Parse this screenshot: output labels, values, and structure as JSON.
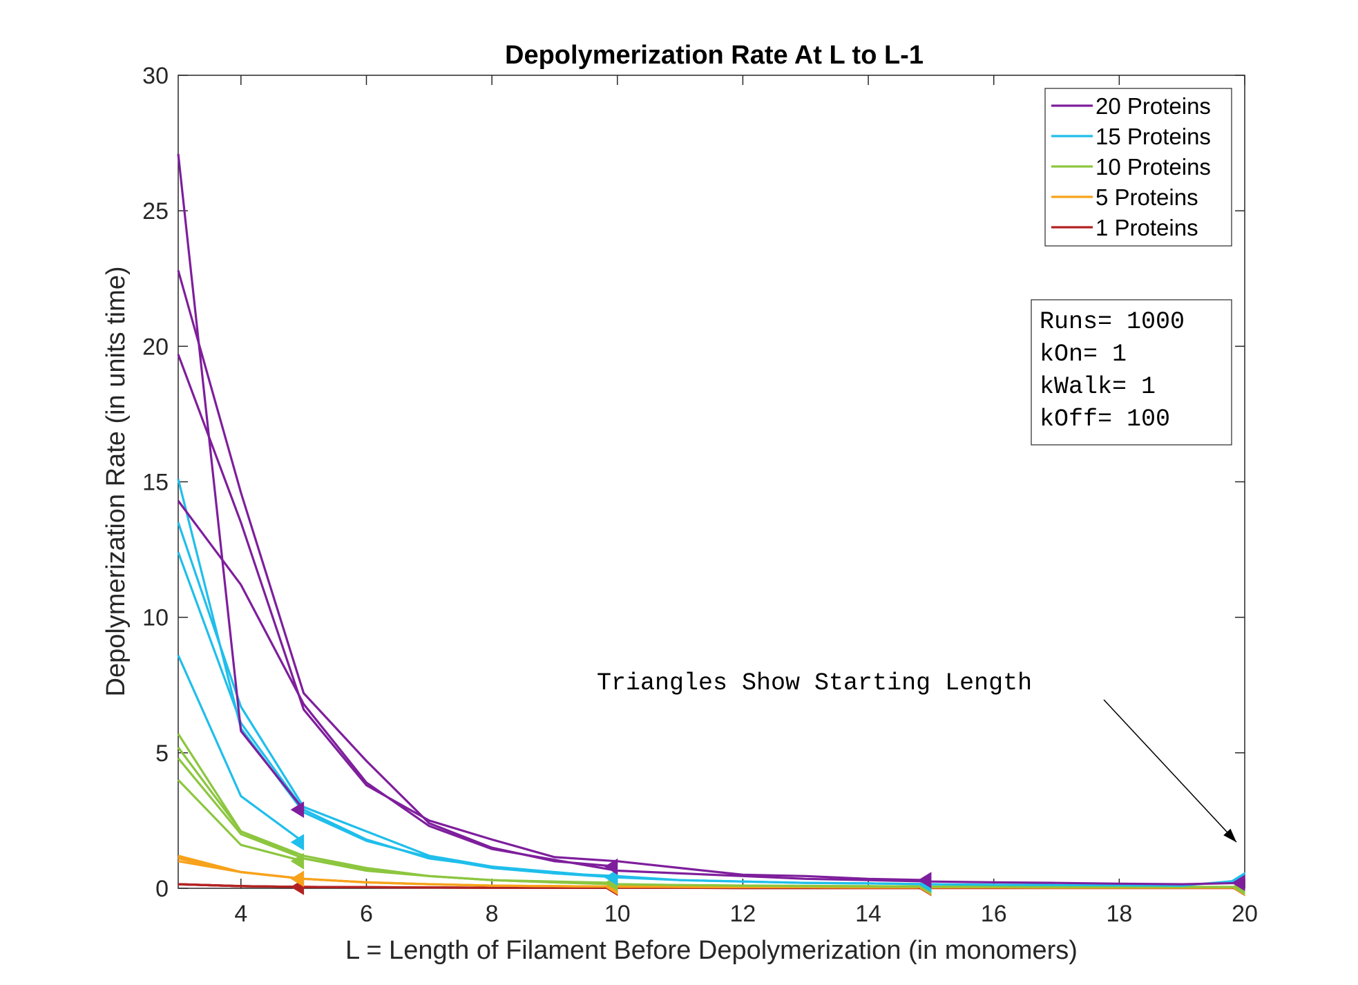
{
  "chart_data": {
    "type": "line",
    "title": "Depolymerization Rate At L to L-1",
    "xlabel": "L = Length of Filament Before Depolymerization (in monomers)",
    "ylabel": "Depolymerization Rate (in units time)",
    "xlim": [
      3,
      20
    ],
    "ylim": [
      0,
      30
    ],
    "xticks": [
      4,
      6,
      8,
      10,
      12,
      14,
      16,
      18,
      20
    ],
    "yticks": [
      0,
      5,
      10,
      15,
      20,
      25,
      30
    ],
    "grid": false,
    "legend_position": "top-right",
    "legend": [
      {
        "label": "20 Proteins",
        "color": "#7E1E9C"
      },
      {
        "label": "15 Proteins",
        "color": "#1FBEEB"
      },
      {
        "label": "10 Proteins",
        "color": "#8CC63F"
      },
      {
        "label": "5 Proteins",
        "color": "#F7A21B"
      },
      {
        "label": "1 Proteins",
        "color": "#B22222"
      }
    ],
    "params_box": [
      "Runs= 1000",
      "kOn= 1",
      "kWalk= 1",
      "kOff= 100"
    ],
    "annotation": {
      "text": "Triangles Show Starting Length",
      "points_to": [
        20,
        1.5
      ]
    },
    "series": [
      {
        "name": "20 Proteins",
        "color": "#7E1E9C",
        "start": 5,
        "x": [
          3,
          4,
          5
        ],
        "y": [
          27.1,
          5.8,
          2.9
        ]
      },
      {
        "name": "20 Proteins",
        "color": "#7E1E9C",
        "start": 10,
        "x": [
          3,
          4,
          5,
          6,
          7,
          8,
          9,
          10
        ],
        "y": [
          22.8,
          14.6,
          7.2,
          4.7,
          2.4,
          1.5,
          1.0,
          0.8
        ]
      },
      {
        "name": "20 Proteins",
        "color": "#7E1E9C",
        "start": 15,
        "x": [
          3,
          4,
          5,
          6,
          7,
          8,
          9,
          10,
          11,
          12,
          13,
          14,
          15
        ],
        "y": [
          19.7,
          13.5,
          6.6,
          3.8,
          2.5,
          1.8,
          1.15,
          1.0,
          0.75,
          0.5,
          0.45,
          0.35,
          0.3
        ]
      },
      {
        "name": "20 Proteins",
        "color": "#7E1E9C",
        "start": 20,
        "x": [
          3,
          4,
          5,
          6,
          7,
          8,
          9,
          10,
          11,
          12,
          13,
          14,
          15,
          16,
          17,
          18,
          19,
          20
        ],
        "y": [
          14.3,
          11.2,
          6.8,
          3.9,
          2.3,
          1.45,
          1.05,
          0.65,
          0.55,
          0.45,
          0.35,
          0.3,
          0.25,
          0.22,
          0.2,
          0.17,
          0.15,
          0.2
        ]
      },
      {
        "name": "15 Proteins",
        "color": "#1FBEEB",
        "start": 5,
        "x": [
          3,
          4,
          5
        ],
        "y": [
          8.6,
          3.4,
          1.7
        ]
      },
      {
        "name": "15 Proteins",
        "color": "#1FBEEB",
        "start": 10,
        "x": [
          3,
          4,
          5,
          6,
          7,
          8,
          9,
          10
        ],
        "y": [
          12.4,
          6.1,
          2.9,
          1.8,
          1.1,
          0.8,
          0.6,
          0.4
        ]
      },
      {
        "name": "15 Proteins",
        "color": "#1FBEEB",
        "start": 15,
        "x": [
          3,
          4,
          5,
          6,
          7,
          8,
          9,
          10,
          11,
          12,
          13,
          14,
          15
        ],
        "y": [
          13.5,
          6.7,
          3.0,
          2.1,
          1.2,
          0.8,
          0.55,
          0.4,
          0.3,
          0.25,
          0.2,
          0.18,
          0.15
        ]
      },
      {
        "name": "15 Proteins",
        "color": "#1FBEEB",
        "start": 20,
        "x": [
          3,
          4,
          5,
          6,
          7,
          8,
          9,
          10,
          11,
          12,
          13,
          14,
          15,
          16,
          17,
          18,
          19,
          20
        ],
        "y": [
          15.1,
          5.9,
          2.8,
          1.75,
          1.15,
          0.75,
          0.55,
          0.45,
          0.3,
          0.25,
          0.2,
          0.18,
          0.15,
          0.13,
          0.12,
          0.11,
          0.1,
          0.3
        ]
      },
      {
        "name": "10 Proteins",
        "color": "#8CC63F",
        "start": 5,
        "x": [
          3,
          4,
          5
        ],
        "y": [
          4.0,
          1.6,
          1.0
        ]
      },
      {
        "name": "10 Proteins",
        "color": "#8CC63F",
        "start": 10,
        "x": [
          3,
          4,
          5,
          6,
          7,
          8,
          9,
          10
        ],
        "y": [
          4.8,
          2.0,
          1.1,
          0.7,
          0.45,
          0.3,
          0.25,
          0.2
        ]
      },
      {
        "name": "10 Proteins",
        "color": "#8CC63F",
        "start": 15,
        "x": [
          3,
          4,
          5,
          6,
          7,
          8,
          9,
          10,
          11,
          12,
          13,
          14,
          15
        ],
        "y": [
          5.2,
          2.1,
          1.2,
          0.75,
          0.45,
          0.3,
          0.22,
          0.15,
          0.12,
          0.1,
          0.09,
          0.08,
          0.07
        ]
      },
      {
        "name": "10 Proteins",
        "color": "#8CC63F",
        "start": 20,
        "x": [
          3,
          4,
          5,
          6,
          7,
          8,
          9,
          10,
          11,
          12,
          13,
          14,
          15,
          16,
          17,
          18,
          19,
          20
        ],
        "y": [
          5.7,
          2.1,
          1.1,
          0.65,
          0.45,
          0.3,
          0.22,
          0.15,
          0.12,
          0.1,
          0.08,
          0.07,
          0.06,
          0.06,
          0.05,
          0.05,
          0.05,
          0.05
        ]
      },
      {
        "name": "5 Proteins",
        "color": "#F7A21B",
        "start": 5,
        "x": [
          3,
          4,
          5
        ],
        "y": [
          1.0,
          0.6,
          0.35
        ]
      },
      {
        "name": "5 Proteins",
        "color": "#F7A21B",
        "start": 10,
        "x": [
          3,
          4,
          5,
          6,
          7,
          8,
          9,
          10
        ],
        "y": [
          1.1,
          0.6,
          0.35,
          0.22,
          0.15,
          0.1,
          0.08,
          0.06
        ]
      },
      {
        "name": "5 Proteins",
        "color": "#F7A21B",
        "start": 15,
        "x": [
          3,
          4,
          5,
          6,
          7,
          8,
          9,
          10,
          11,
          12,
          13,
          14,
          15
        ],
        "y": [
          1.15,
          0.6,
          0.35,
          0.22,
          0.15,
          0.1,
          0.08,
          0.06,
          0.05,
          0.04,
          0.04,
          0.03,
          0.03
        ]
      },
      {
        "name": "5 Proteins",
        "color": "#F7A21B",
        "start": 20,
        "x": [
          3,
          4,
          5,
          6,
          7,
          8,
          9,
          10,
          11,
          12,
          13,
          14,
          15,
          16,
          17,
          18,
          19,
          20
        ],
        "y": [
          1.2,
          0.6,
          0.35,
          0.22,
          0.15,
          0.1,
          0.08,
          0.06,
          0.05,
          0.04,
          0.04,
          0.03,
          0.03,
          0.03,
          0.02,
          0.02,
          0.02,
          0.02
        ]
      },
      {
        "name": "1 Proteins",
        "color": "#B22222",
        "start": 5,
        "x": [
          3,
          4,
          5
        ],
        "y": [
          0.15,
          0.08,
          0.05
        ]
      },
      {
        "name": "1 Proteins",
        "color": "#B22222",
        "start": 10,
        "x": [
          3,
          4,
          5,
          6,
          7,
          8,
          9,
          10
        ],
        "y": [
          0.15,
          0.08,
          0.05,
          0.04,
          0.03,
          0.02,
          0.02,
          0.02
        ]
      },
      {
        "name": "1 Proteins",
        "color": "#B22222",
        "start": 15,
        "x": [
          3,
          4,
          5,
          6,
          7,
          8,
          9,
          10,
          11,
          12,
          13,
          14,
          15
        ],
        "y": [
          0.15,
          0.08,
          0.05,
          0.04,
          0.03,
          0.02,
          0.02,
          0.02,
          0.02,
          0.01,
          0.01,
          0.01,
          0.01
        ]
      },
      {
        "name": "1 Proteins",
        "color": "#B22222",
        "start": 20,
        "x": [
          3,
          4,
          5,
          6,
          7,
          8,
          9,
          10,
          11,
          12,
          13,
          14,
          15,
          16,
          17,
          18,
          19,
          20
        ],
        "y": [
          0.15,
          0.08,
          0.05,
          0.04,
          0.03,
          0.02,
          0.02,
          0.02,
          0.02,
          0.01,
          0.01,
          0.01,
          0.01,
          0.01,
          0.01,
          0.01,
          0.01,
          0.01
        ]
      }
    ]
  }
}
